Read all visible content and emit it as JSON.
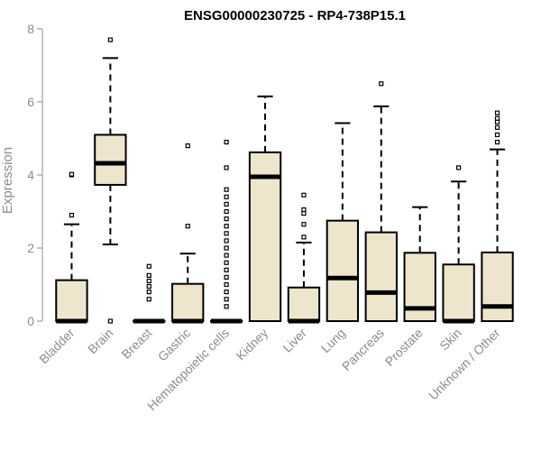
{
  "chart_data": {
    "type": "boxplot",
    "title": "ENSG00000230725 - RP4-738P15.1",
    "xlabel": "",
    "ylabel": "Expression",
    "ylim": [
      0,
      8
    ],
    "yticks": [
      0,
      2,
      4,
      6,
      8
    ],
    "grid": false,
    "colors": {
      "box_fill": "#ede6cc",
      "stroke": "#000000",
      "axis": "#8c8c8c"
    },
    "categories": [
      "Bladder",
      "Brain",
      "Breast",
      "Gastric",
      "Hematopoietic cells",
      "Kidney",
      "Liver",
      "Lung",
      "Pancreas",
      "Prostate",
      "Skin",
      "Unknown / Other"
    ],
    "boxes": [
      {
        "q1": 0,
        "median": 0,
        "q3": 1.12,
        "whisker_low": 0,
        "whisker_high": 2.65,
        "outliers": [
          2.9,
          4.0,
          4.02
        ]
      },
      {
        "q1": 3.73,
        "median": 4.32,
        "q3": 5.1,
        "whisker_low": 2.1,
        "whisker_high": 7.2,
        "outliers": [
          0,
          7.7
        ]
      },
      {
        "q1": 0,
        "median": 0,
        "q3": 0,
        "whisker_low": 0,
        "whisker_high": 0,
        "outliers": [
          0.6,
          0.8,
          0.95,
          1.1,
          1.25,
          1.5
        ]
      },
      {
        "q1": 0,
        "median": 0,
        "q3": 1.02,
        "whisker_low": 0,
        "whisker_high": 1.85,
        "outliers": [
          2.6,
          4.8
        ]
      },
      {
        "q1": 0,
        "median": 0,
        "q3": 0,
        "whisker_low": 0,
        "whisker_high": 0,
        "outliers": [
          0.4,
          0.6,
          0.8,
          1.0,
          1.2,
          1.4,
          1.6,
          1.8,
          2.0,
          2.2,
          2.4,
          2.6,
          2.8,
          3.0,
          3.2,
          3.4,
          3.6,
          4.2,
          4.9
        ]
      },
      {
        "q1": 0,
        "median": 3.95,
        "q3": 4.62,
        "whisker_low": 0,
        "whisker_high": 6.15,
        "outliers": []
      },
      {
        "q1": 0,
        "median": 0,
        "q3": 0.92,
        "whisker_low": 0,
        "whisker_high": 2.15,
        "outliers": [
          2.3,
          2.65,
          2.95,
          3.05,
          3.45
        ]
      },
      {
        "q1": 0,
        "median": 1.18,
        "q3": 2.75,
        "whisker_low": 0,
        "whisker_high": 5.42,
        "outliers": []
      },
      {
        "q1": 0,
        "median": 0.78,
        "q3": 2.43,
        "whisker_low": 0,
        "whisker_high": 5.88,
        "outliers": [
          6.5
        ]
      },
      {
        "q1": 0,
        "median": 0.35,
        "q3": 1.87,
        "whisker_low": 0,
        "whisker_high": 3.12,
        "outliers": []
      },
      {
        "q1": 0,
        "median": 0,
        "q3": 1.55,
        "whisker_low": 0,
        "whisker_high": 3.82,
        "outliers": [
          4.2
        ]
      },
      {
        "q1": 0,
        "median": 0.4,
        "q3": 1.88,
        "whisker_low": 0,
        "whisker_high": 4.7,
        "outliers": [
          4.9,
          5.1,
          5.3,
          5.45,
          5.55,
          5.7
        ]
      }
    ]
  }
}
